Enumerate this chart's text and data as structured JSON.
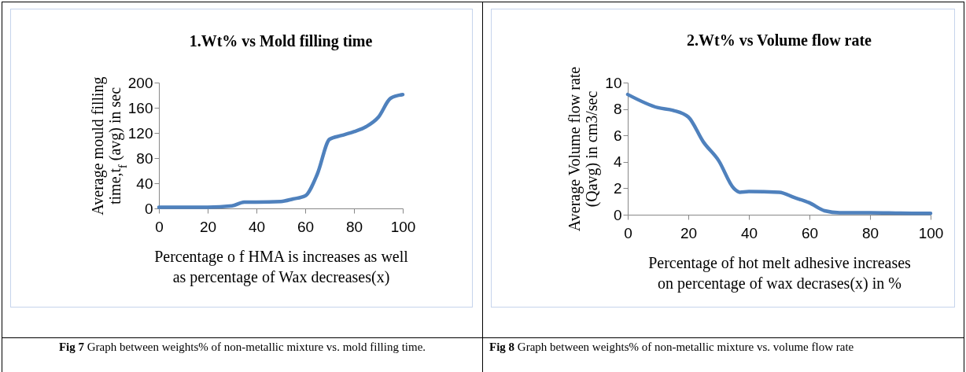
{
  "chart_data": [
    {
      "type": "line",
      "title": "1.Wt% vs Mold filling time",
      "xlabel": "Percentage o f HMA is increases as well as percentage of Wax decreases(x)",
      "ylabel": "Average mould filling time,t$_{f}$ (avg) in sec",
      "annotations": [
        "Fig 7 Graph between weights% of non-metallic mixture vs. mold filling time."
      ],
      "x": [
        0,
        10,
        20,
        30,
        35,
        40,
        50,
        55,
        60,
        65,
        70,
        75,
        80,
        85,
        90,
        95,
        100
      ],
      "series": [
        {
          "color": "#4f81bd",
          "values": [
            2,
            2,
            2,
            4,
            10,
            10,
            11,
            15,
            20,
            55,
            110,
            116,
            122,
            130,
            145,
            175,
            181
          ]
        }
      ],
      "xlim": [
        0,
        100
      ],
      "xticks": [
        0,
        20,
        40,
        60,
        80,
        100
      ],
      "ylim": [
        0,
        200
      ],
      "yticks": [
        0,
        40,
        80,
        120,
        160,
        200
      ],
      "grid": false,
      "marker": "none",
      "line_style": "solid"
    },
    {
      "type": "line",
      "title": "2.Wt% vs Volume flow rate",
      "xlabel": "Percentage of hot melt adhesive increases on percentage of wax decrases(x) in %",
      "ylabel": "Average Volume flow rate (Qavg) in cm3/sec",
      "annotations": [
        "Fig 8 Graph between weights% of non-metallic mixture vs. volume flow rate"
      ],
      "x": [
        0,
        10,
        15,
        20,
        25,
        30,
        35,
        37,
        40,
        50,
        55,
        60,
        65,
        70,
        80,
        90,
        100
      ],
      "series": [
        {
          "color": "#4f81bd",
          "values": [
            9.1,
            8.1,
            7.9,
            7.4,
            5.5,
            4.1,
            2,
            1.7,
            1.75,
            1.7,
            1.3,
            0.9,
            0.3,
            0.15,
            0.15,
            0.12,
            0.1
          ]
        }
      ],
      "xlim": [
        0,
        100
      ],
      "xticks": [
        0,
        20,
        40,
        60,
        80,
        100
      ],
      "ylim": [
        0,
        10
      ],
      "yticks": [
        0,
        2,
        4,
        6,
        8,
        10
      ],
      "grid": false,
      "marker": "none",
      "line_style": "solid"
    }
  ]
}
